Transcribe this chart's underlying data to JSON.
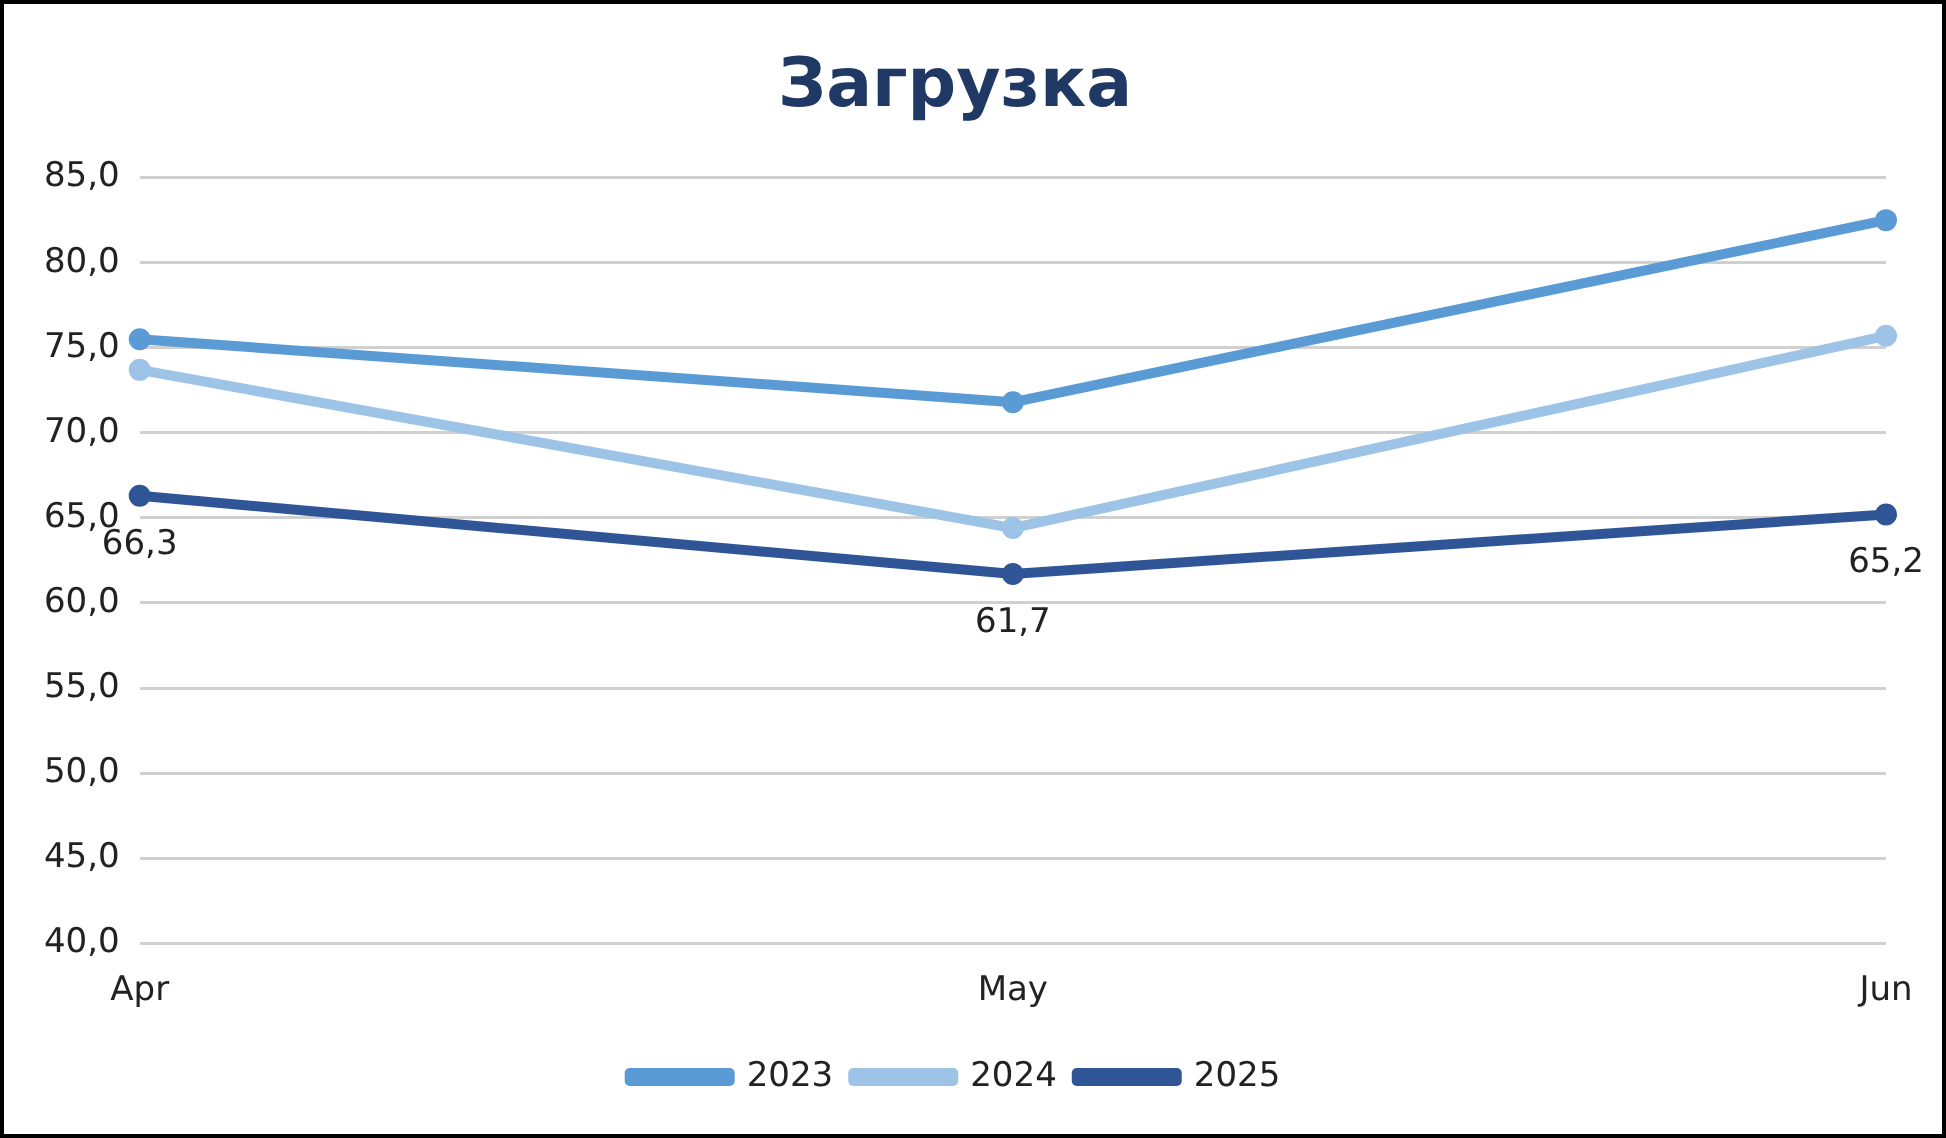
{
  "chart_data": {
    "type": "line",
    "title": "Загрузка",
    "categories": [
      "Apr",
      "May",
      "Jun"
    ],
    "series": [
      {
        "name": "2023",
        "color": "#5b9bd5",
        "values": [
          75.5,
          71.8,
          82.5
        ]
      },
      {
        "name": "2024",
        "color": "#9dc3e6",
        "values": [
          73.7,
          64.4,
          75.7
        ]
      },
      {
        "name": "2025",
        "color": "#2f5597",
        "values": [
          66.3,
          61.7,
          65.2
        ],
        "value_labels": [
          "66,3",
          "61,7",
          "65,2"
        ]
      }
    ],
    "ylim": [
      40,
      85
    ],
    "yticks": [
      {
        "value": 40,
        "label": "40,0"
      },
      {
        "value": 45,
        "label": "45,0"
      },
      {
        "value": 50,
        "label": "50,0"
      },
      {
        "value": 55,
        "label": "55,0"
      },
      {
        "value": 60,
        "label": "60,0"
      },
      {
        "value": 65,
        "label": "65,0"
      },
      {
        "value": 70,
        "label": "70,0"
      },
      {
        "value": 75,
        "label": "75,0"
      },
      {
        "value": 80,
        "label": "80,0"
      },
      {
        "value": 85,
        "label": "85,0"
      }
    ],
    "grid": "y",
    "legend": "bottom",
    "marker": "circle",
    "line_style": "solid"
  }
}
